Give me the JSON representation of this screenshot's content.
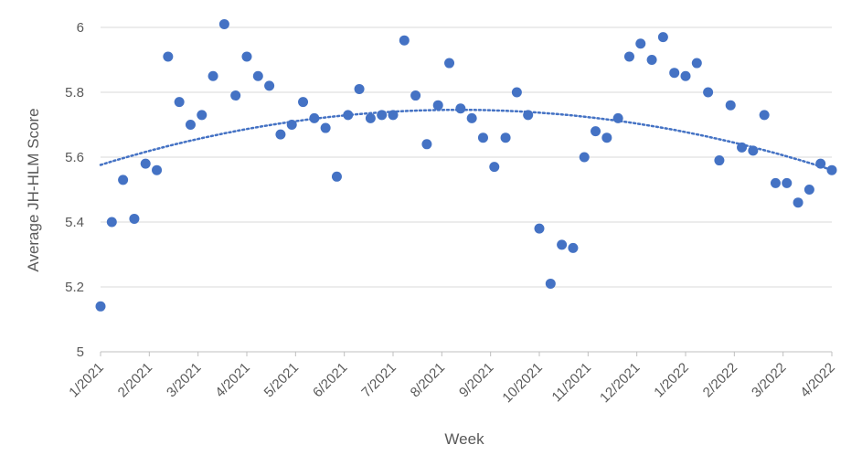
{
  "chart_data": {
    "type": "scatter",
    "title": "",
    "xlabel": "Week",
    "ylabel": "Average JH-HLM Score",
    "ylim": [
      5,
      6
    ],
    "yticks": [
      "5",
      "5.2",
      "5.4",
      "5.6",
      "5.8",
      "6"
    ],
    "xticks": [
      "1/2021",
      "2/2021",
      "3/2021",
      "4/2021",
      "5/2021",
      "6/2021",
      "7/2021",
      "8/2021",
      "9/2021",
      "10/2021",
      "11/2021",
      "12/2021",
      "1/2022",
      "2/2022",
      "3/2022",
      "4/2022"
    ],
    "x_range_weeks": [
      0,
      65
    ],
    "grid": "horizontal",
    "legend": "none",
    "trendline": {
      "style": "dotted",
      "type": "polynomial",
      "color": "#4472c4"
    },
    "marker_color": "#4472c4",
    "x": [
      0,
      1,
      2,
      3,
      4,
      5,
      6,
      7,
      8,
      9,
      10,
      11,
      12,
      13,
      14,
      15,
      16,
      17,
      18,
      19,
      20,
      21,
      22,
      23,
      24,
      25,
      26,
      27,
      28,
      29,
      30,
      31,
      32,
      33,
      34,
      35,
      36,
      37,
      38,
      39,
      40,
      41,
      42,
      43,
      44,
      45,
      46,
      47,
      48,
      49,
      50,
      51,
      52,
      53,
      54,
      55,
      56,
      57,
      58,
      59,
      60,
      61,
      62,
      63,
      64,
      65
    ],
    "y": [
      5.14,
      5.4,
      5.53,
      5.41,
      5.58,
      5.56,
      5.91,
      5.77,
      5.7,
      5.73,
      5.85,
      6.01,
      5.79,
      5.91,
      5.85,
      5.82,
      5.67,
      5.7,
      5.77,
      5.72,
      5.69,
      5.54,
      5.73,
      5.81,
      5.72,
      5.73,
      5.73,
      5.96,
      5.79,
      5.64,
      5.76,
      5.89,
      5.75,
      5.72,
      5.66,
      5.57,
      5.66,
      5.8,
      5.73,
      5.38,
      5.21,
      5.33,
      5.32,
      5.6,
      5.68,
      5.66,
      5.72,
      5.91,
      5.95,
      5.9,
      5.97,
      5.86,
      5.85,
      5.89,
      5.8,
      5.59,
      5.76,
      5.63,
      5.62,
      5.73,
      5.52,
      5.52,
      5.46,
      5.5,
      5.58,
      5.56
    ]
  }
}
